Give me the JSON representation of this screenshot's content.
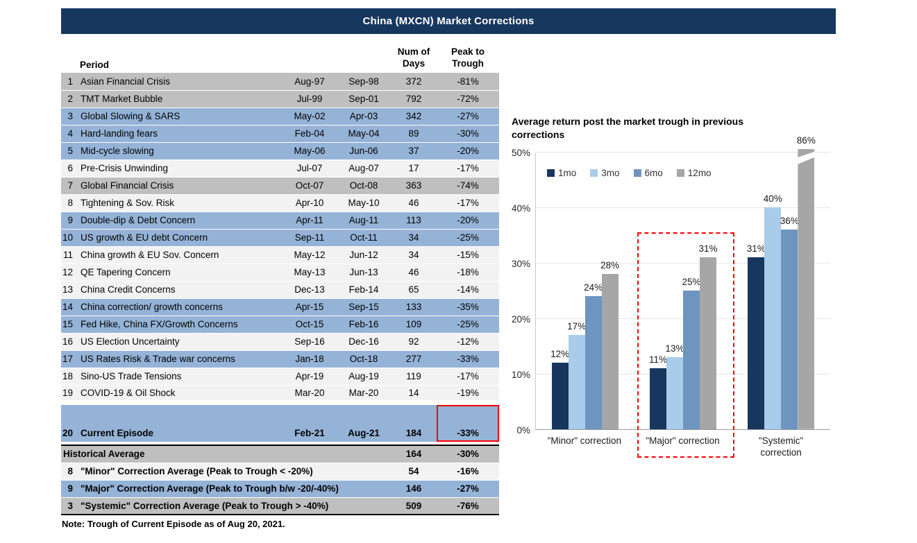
{
  "header": {
    "title": "China (MXCN) Market Corrections"
  },
  "colors": {
    "header_bg": "#17375E",
    "row_major_blue": "#95B3D7",
    "row_minor_light": "#F2F2F2",
    "row_systemic_gray": "#BFBFBF",
    "highlight_red": "#FF0000"
  },
  "table": {
    "columns": {
      "period": "Period",
      "days_line1": "Num of",
      "days_line2": "Days",
      "trough_line1": "Peak to",
      "trough_line2": "Trough"
    },
    "rows": [
      {
        "num": "1",
        "period": "Asian Financial Crisis",
        "start": "Aug-97",
        "end": "Sep-98",
        "days": "372",
        "trough": "-81%",
        "type": "systemic"
      },
      {
        "num": "2",
        "period": "TMT Market Bubble",
        "start": "Jul-99",
        "end": "Sep-01",
        "days": "792",
        "trough": "-72%",
        "type": "systemic"
      },
      {
        "num": "3",
        "period": "Global Slowing & SARS",
        "start": "May-02",
        "end": "Apr-03",
        "days": "342",
        "trough": "-27%",
        "type": "major"
      },
      {
        "num": "4",
        "period": "Hard-landing fears",
        "start": "Feb-04",
        "end": "May-04",
        "days": "89",
        "trough": "-30%",
        "type": "major"
      },
      {
        "num": "5",
        "period": "Mid-cycle slowing",
        "start": "May-06",
        "end": "Jun-06",
        "days": "37",
        "trough": "-20%",
        "type": "major"
      },
      {
        "num": "6",
        "period": "Pre-Crisis Unwinding",
        "start": "Jul-07",
        "end": "Aug-07",
        "days": "17",
        "trough": "-17%",
        "type": "minor"
      },
      {
        "num": "7",
        "period": "Global Financial Crisis",
        "start": "Oct-07",
        "end": "Oct-08",
        "days": "363",
        "trough": "-74%",
        "type": "systemic"
      },
      {
        "num": "8",
        "period": "Tightening & Sov. Risk",
        "start": "Apr-10",
        "end": "May-10",
        "days": "46",
        "trough": "-17%",
        "type": "minor"
      },
      {
        "num": "9",
        "period": "Double-dip & Debt Concern",
        "start": "Apr-11",
        "end": "Aug-11",
        "days": "113",
        "trough": "-20%",
        "type": "major"
      },
      {
        "num": "10",
        "period": "US growth & EU debt Concern",
        "start": "Sep-11",
        "end": "Oct-11",
        "days": "34",
        "trough": "-25%",
        "type": "major"
      },
      {
        "num": "11",
        "period": "China growth & EU Sov. Concern",
        "start": "May-12",
        "end": "Jun-12",
        "days": "34",
        "trough": "-15%",
        "type": "minor"
      },
      {
        "num": "12",
        "period": "QE Tapering Concern",
        "start": "May-13",
        "end": "Jun-13",
        "days": "46",
        "trough": "-18%",
        "type": "minor"
      },
      {
        "num": "13",
        "period": "China Credit Concerns",
        "start": "Dec-13",
        "end": "Feb-14",
        "days": "65",
        "trough": "-14%",
        "type": "minor"
      },
      {
        "num": "14",
        "period": "China correction/ growth concerns",
        "start": "Apr-15",
        "end": "Sep-15",
        "days": "133",
        "trough": "-35%",
        "type": "major"
      },
      {
        "num": "15",
        "period": "Fed Hike, China FX/Growth Concerns",
        "start": "Oct-15",
        "end": "Feb-16",
        "days": "109",
        "trough": "-25%",
        "type": "major"
      },
      {
        "num": "16",
        "period": "US Election Uncertainty",
        "start": "Sep-16",
        "end": "Dec-16",
        "days": "92",
        "trough": "-12%",
        "type": "minor"
      },
      {
        "num": "17",
        "period": "US Rates Risk & Trade war concerns",
        "start": "Jan-18",
        "end": "Oct-18",
        "days": "277",
        "trough": "-33%",
        "type": "major"
      },
      {
        "num": "18",
        "period": "Sino-US Trade Tensions",
        "start": "Apr-19",
        "end": "Aug-19",
        "days": "119",
        "trough": "-17%",
        "type": "minor"
      },
      {
        "num": "19",
        "period": "COVID-19 & Oil Shock",
        "start": "Mar-20",
        "end": "Mar-20",
        "days": "14",
        "trough": "-19%",
        "type": "minor"
      },
      {
        "num": "20",
        "period": "Current Episode",
        "start": "Feb-21",
        "end": "Aug-21",
        "days": "184",
        "trough": "-33%",
        "type": "current"
      }
    ],
    "summary": [
      {
        "count": "",
        "label": "Historical Average",
        "days": "164",
        "trough": "-30%",
        "style": "gray"
      },
      {
        "count": "8",
        "label": "\"Minor\" Correction Average (Peak to Trough < -20%)",
        "days": "54",
        "trough": "-16%",
        "style": "light"
      },
      {
        "count": "9",
        "label": "\"Major\" Correction Average (Peak to Trough b/w -20/-40%)",
        "days": "146",
        "trough": "-27%",
        "style": "blue"
      },
      {
        "count": "3",
        "label": "\"Systemic\" Correction Average (Peak to Trough > -40%)",
        "days": "509",
        "trough": "-76%",
        "style": "gray"
      }
    ],
    "note": "Note: Trough of Current Episode as of Aug 20, 2021."
  },
  "chart_data": {
    "type": "bar",
    "title": "Average return post the market trough in previous corrections",
    "categories": [
      "\"Minor\" correction",
      "\"Major\" correction",
      "\"Systemic\"\ncorrection"
    ],
    "series": [
      {
        "name": "1mo",
        "color": "#17375E",
        "values": [
          12,
          11,
          31
        ]
      },
      {
        "name": "3mo",
        "color": "#A8CCEA",
        "values": [
          17,
          13,
          40
        ]
      },
      {
        "name": "6mo",
        "color": "#6E94C0",
        "values": [
          24,
          25,
          36
        ]
      },
      {
        "name": "12mo",
        "color": "#A6A6A6",
        "values": [
          28,
          31,
          86
        ]
      }
    ],
    "ylim": [
      0,
      50
    ],
    "ticks": [
      0,
      10,
      20,
      30,
      40,
      50
    ],
    "tick_labels": [
      "0%",
      "10%",
      "20%",
      "30%",
      "40%",
      "50%"
    ],
    "grid": true,
    "legend_position": "top-left-inside",
    "annotations": {
      "highlighted_category": "\"Major\" correction",
      "clipped_bar": {
        "category": "\"Systemic\" correction",
        "series": "12mo",
        "value": 86
      },
      "boxed_table_value": {
        "row": "Current Episode",
        "value": "-33%"
      }
    }
  }
}
